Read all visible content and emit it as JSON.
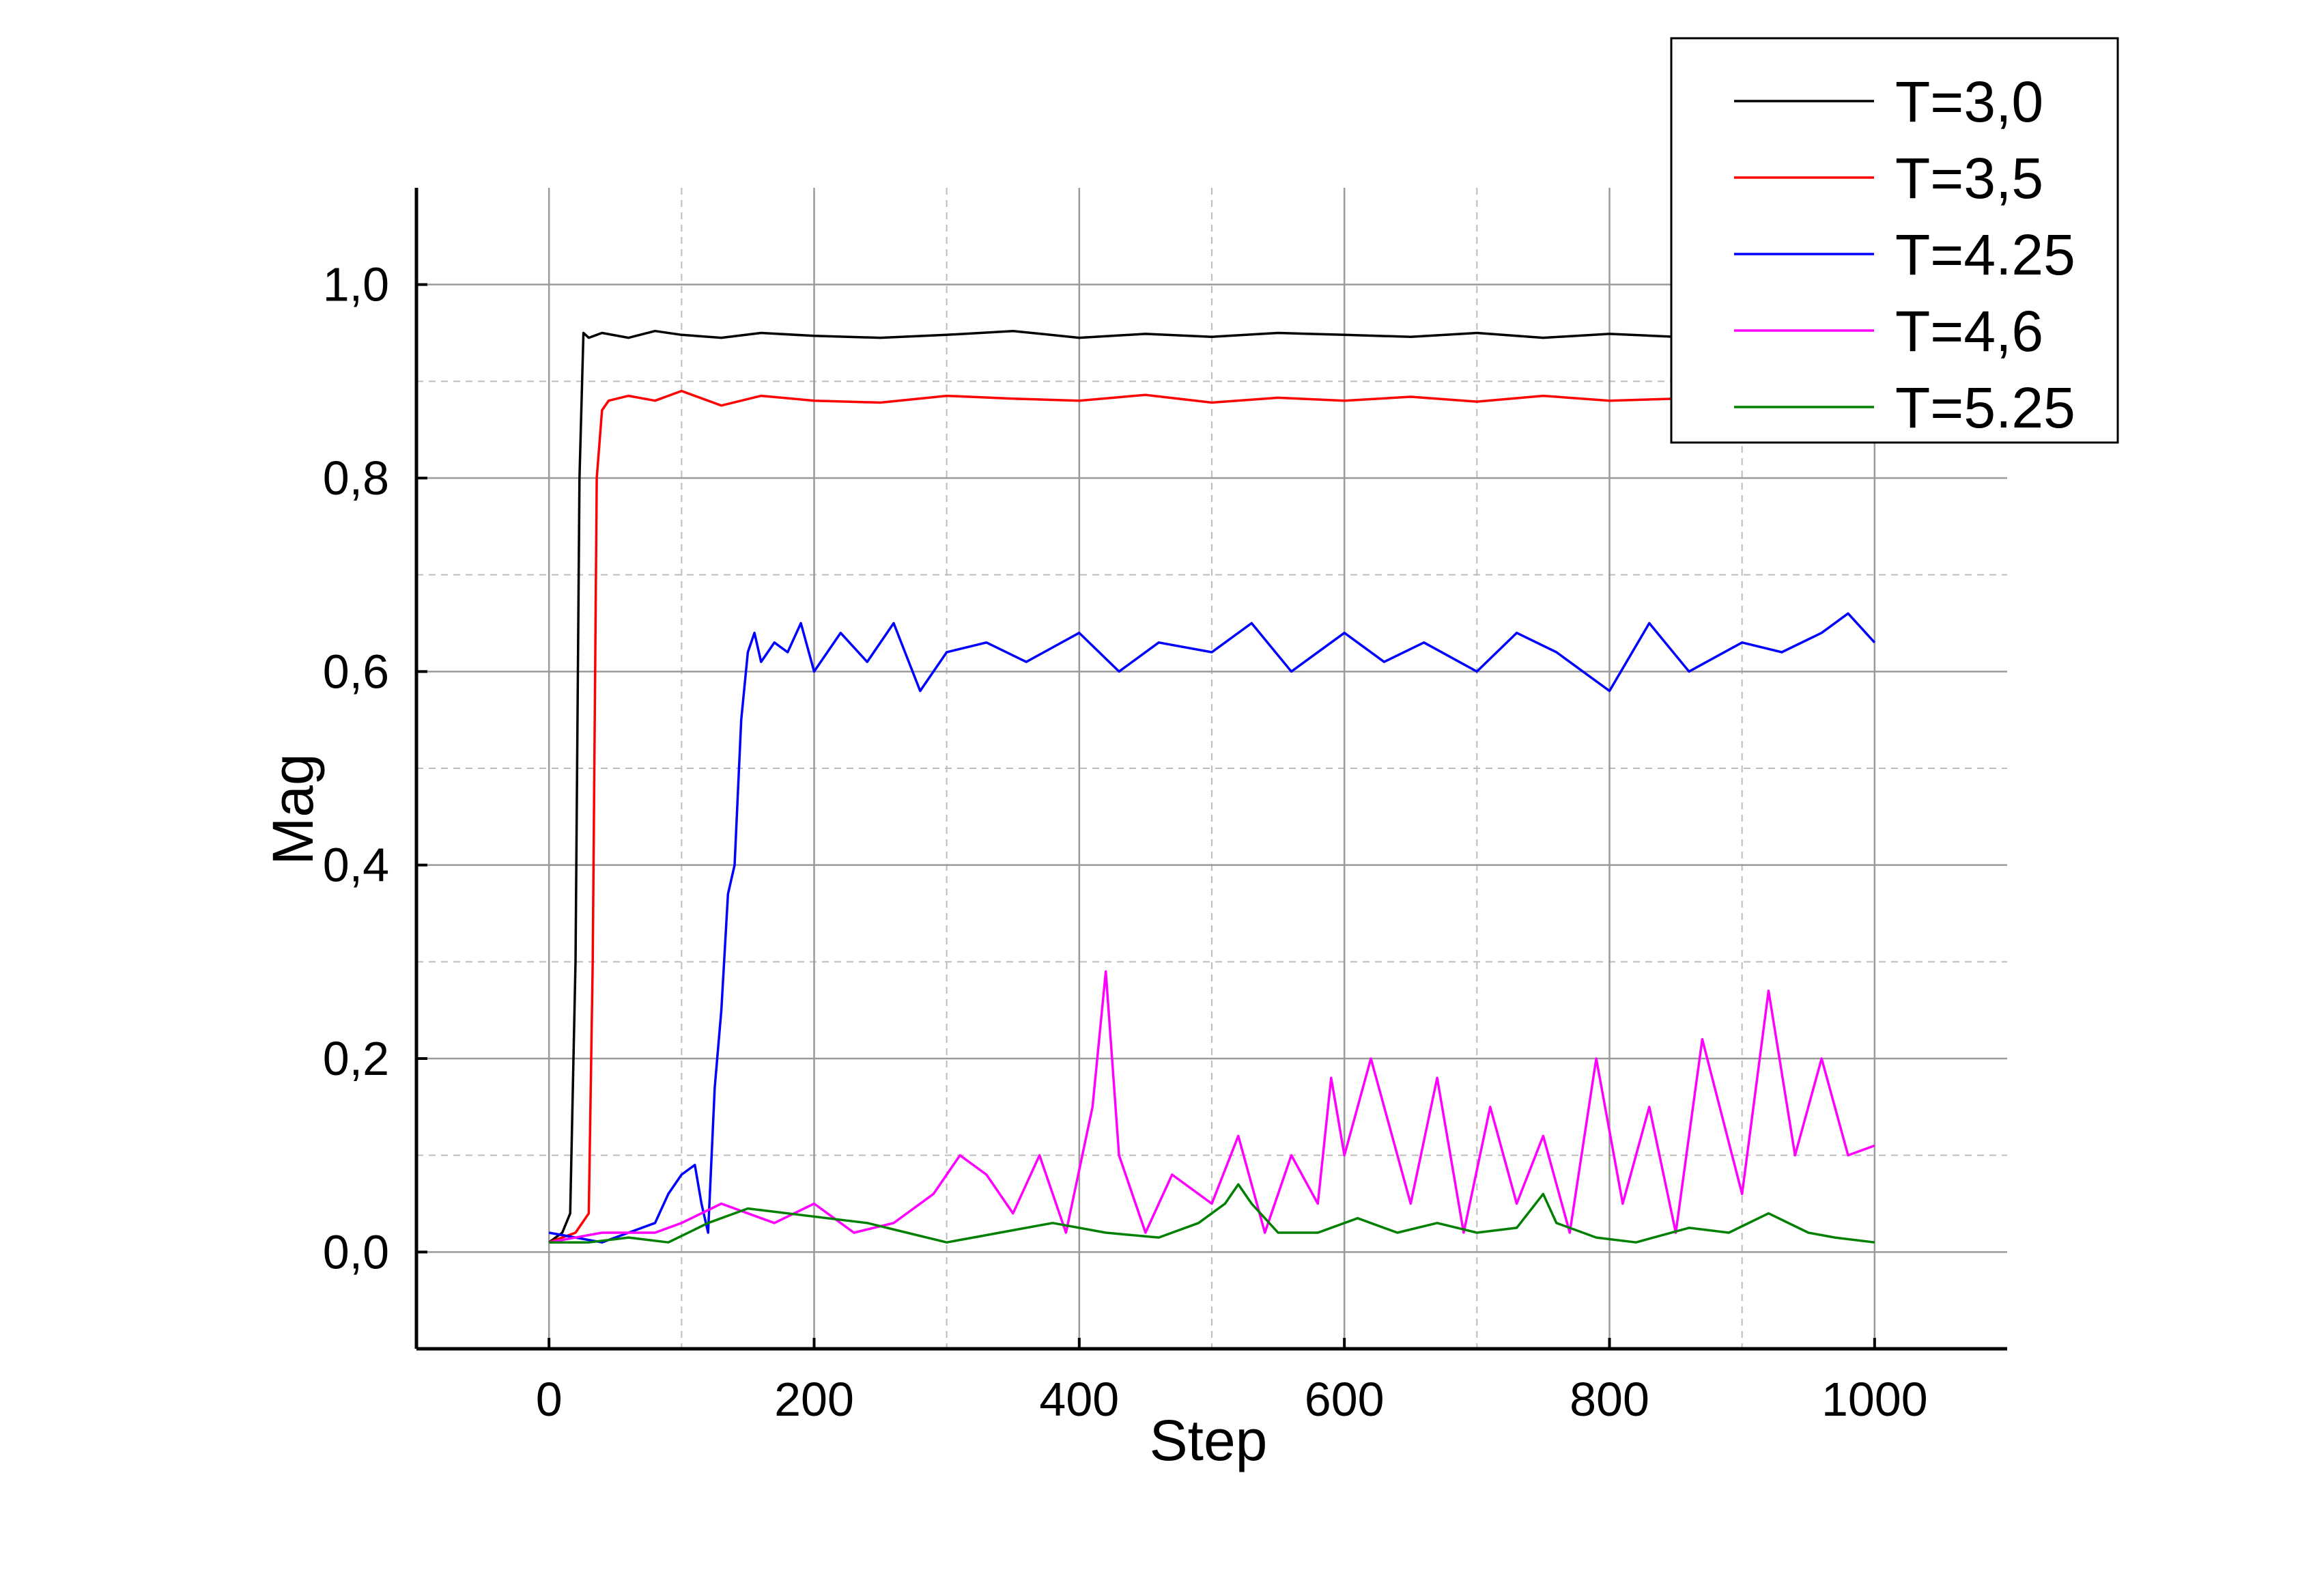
{
  "chart_data": {
    "type": "line",
    "xlabel": "Step",
    "ylabel": "Mag",
    "xlim": [
      -100,
      1100
    ],
    "ylim": [
      -0.1,
      1.1
    ],
    "x_ticks": [
      0,
      200,
      400,
      600,
      800,
      1000
    ],
    "x_tick_labels": [
      "0",
      "200",
      "400",
      "600",
      "800",
      "1000"
    ],
    "y_ticks": [
      0.0,
      0.2,
      0.4,
      0.6,
      0.8,
      1.0
    ],
    "y_tick_labels": [
      "0,0",
      "0,2",
      "0,4",
      "0,6",
      "0,8",
      "1,0"
    ],
    "grid": true,
    "legend_position": "top-right",
    "series": [
      {
        "name": "T=3,0",
        "color": "#000000",
        "x": [
          0,
          10,
          16,
          20,
          23,
          26,
          30,
          40,
          60,
          80,
          100,
          130,
          160,
          200,
          250,
          300,
          350,
          400,
          450,
          500,
          550,
          600,
          650,
          700,
          750,
          800,
          850,
          900,
          950,
          1000
        ],
        "y": [
          0.01,
          0.02,
          0.04,
          0.3,
          0.8,
          0.95,
          0.945,
          0.95,
          0.945,
          0.952,
          0.948,
          0.945,
          0.95,
          0.947,
          0.945,
          0.948,
          0.952,
          0.945,
          0.949,
          0.946,
          0.95,
          0.948,
          0.946,
          0.95,
          0.945,
          0.949,
          0.946,
          0.948,
          0.945,
          0.947
        ]
      },
      {
        "name": "T=3,5",
        "color": "#ff0000",
        "x": [
          0,
          20,
          30,
          33,
          36,
          40,
          45,
          60,
          80,
          100,
          130,
          160,
          200,
          250,
          300,
          350,
          400,
          450,
          500,
          550,
          600,
          650,
          700,
          750,
          800,
          850,
          900,
          950,
          1000
        ],
        "y": [
          0.01,
          0.02,
          0.04,
          0.3,
          0.8,
          0.87,
          0.88,
          0.885,
          0.88,
          0.89,
          0.875,
          0.885,
          0.88,
          0.878,
          0.885,
          0.882,
          0.88,
          0.886,
          0.878,
          0.883,
          0.88,
          0.884,
          0.879,
          0.885,
          0.88,
          0.882,
          0.878,
          0.884,
          0.88
        ]
      },
      {
        "name": "T=4.25",
        "color": "#0000ff",
        "x": [
          0,
          20,
          40,
          60,
          80,
          90,
          100,
          110,
          115,
          120,
          125,
          130,
          135,
          140,
          145,
          150,
          155,
          160,
          170,
          180,
          190,
          200,
          220,
          240,
          260,
          280,
          300,
          330,
          360,
          400,
          430,
          460,
          500,
          530,
          560,
          600,
          630,
          660,
          700,
          730,
          760,
          800,
          830,
          860,
          900,
          930,
          960,
          980,
          1000
        ],
        "y": [
          0.02,
          0.015,
          0.01,
          0.02,
          0.03,
          0.06,
          0.08,
          0.09,
          0.05,
          0.02,
          0.17,
          0.25,
          0.37,
          0.4,
          0.55,
          0.62,
          0.64,
          0.61,
          0.63,
          0.62,
          0.65,
          0.6,
          0.64,
          0.61,
          0.65,
          0.58,
          0.62,
          0.63,
          0.61,
          0.64,
          0.6,
          0.63,
          0.62,
          0.65,
          0.6,
          0.64,
          0.61,
          0.63,
          0.6,
          0.64,
          0.62,
          0.58,
          0.65,
          0.6,
          0.63,
          0.62,
          0.64,
          0.66,
          0.63
        ]
      },
      {
        "name": "T=4,6",
        "color": "#ff00ff",
        "x": [
          0,
          40,
          80,
          100,
          130,
          150,
          170,
          200,
          230,
          260,
          290,
          310,
          330,
          350,
          370,
          390,
          410,
          420,
          430,
          450,
          470,
          500,
          520,
          540,
          560,
          580,
          590,
          600,
          620,
          650,
          670,
          690,
          710,
          730,
          750,
          770,
          790,
          810,
          830,
          850,
          870,
          900,
          920,
          940,
          960,
          980,
          1000
        ],
        "y": [
          0.01,
          0.02,
          0.02,
          0.03,
          0.05,
          0.04,
          0.03,
          0.05,
          0.02,
          0.03,
          0.06,
          0.1,
          0.08,
          0.04,
          0.1,
          0.02,
          0.15,
          0.29,
          0.1,
          0.02,
          0.08,
          0.05,
          0.12,
          0.02,
          0.1,
          0.05,
          0.18,
          0.1,
          0.2,
          0.05,
          0.18,
          0.02,
          0.15,
          0.05,
          0.12,
          0.02,
          0.2,
          0.05,
          0.15,
          0.02,
          0.22,
          0.06,
          0.27,
          0.1,
          0.2,
          0.1,
          0.11
        ]
      },
      {
        "name": "T=5.25",
        "color": "#008000",
        "x": [
          0,
          30,
          60,
          90,
          120,
          150,
          180,
          210,
          240,
          270,
          300,
          340,
          380,
          420,
          460,
          490,
          510,
          520,
          530,
          550,
          580,
          610,
          640,
          670,
          700,
          730,
          750,
          760,
          790,
          820,
          860,
          890,
          920,
          950,
          970,
          1000
        ],
        "y": [
          0.01,
          0.01,
          0.015,
          0.01,
          0.03,
          0.045,
          0.04,
          0.035,
          0.03,
          0.02,
          0.01,
          0.02,
          0.03,
          0.02,
          0.015,
          0.03,
          0.05,
          0.07,
          0.05,
          0.02,
          0.02,
          0.035,
          0.02,
          0.03,
          0.02,
          0.025,
          0.06,
          0.03,
          0.015,
          0.01,
          0.025,
          0.02,
          0.04,
          0.02,
          0.015,
          0.01
        ]
      }
    ]
  }
}
